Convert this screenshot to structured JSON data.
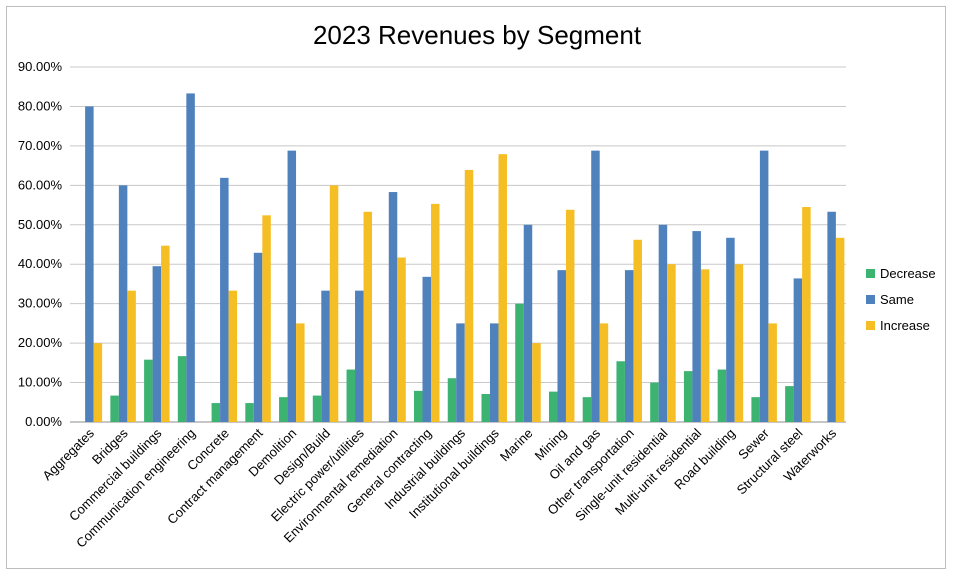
{
  "chart_data": {
    "type": "bar",
    "title": "2023 Revenues by Segment",
    "xlabel": "",
    "ylabel": "",
    "ylim": [
      0,
      90
    ],
    "yticks": [
      "0.00%",
      "10.00%",
      "20.00%",
      "30.00%",
      "40.00%",
      "50.00%",
      "60.00%",
      "70.00%",
      "80.00%",
      "90.00%"
    ],
    "grid": true,
    "legend_position": "right",
    "categories": [
      "Aggregates",
      "Bridges",
      "Commercial buildings",
      "Communication engineering",
      "Concrete",
      "Contract management",
      "Demolition",
      "Design/Build",
      "Electric power/utilities",
      "Environmental remediation",
      "General contracting",
      "Industrial buildings",
      "Institutional buildings",
      "Marine",
      "Mining",
      "Oil and gas",
      "Other transportation",
      "Single-unit residential",
      "Multi-unit residential",
      "Road building",
      "Sewer",
      "Structural steel",
      "Waterworks"
    ],
    "series": [
      {
        "name": "Decrease",
        "color": "#3cb371",
        "values": [
          0,
          6.7,
          15.8,
          16.7,
          4.8,
          4.8,
          6.3,
          6.7,
          13.3,
          0,
          7.9,
          11.1,
          7.1,
          30.0,
          7.7,
          6.3,
          15.4,
          10.0,
          12.9,
          13.3,
          6.3,
          9.1,
          0
        ]
      },
      {
        "name": "Same",
        "color": "#4f81bd",
        "values": [
          80.0,
          60.0,
          39.5,
          83.3,
          61.9,
          42.9,
          68.8,
          33.3,
          33.3,
          58.3,
          36.8,
          25.0,
          25.0,
          50.0,
          38.5,
          68.8,
          38.5,
          50.0,
          48.4,
          46.7,
          68.8,
          36.4,
          53.3
        ]
      },
      {
        "name": "Increase",
        "color": "#f6be25",
        "values": [
          20.0,
          33.3,
          44.7,
          0,
          33.3,
          52.4,
          25.0,
          60.0,
          53.3,
          41.7,
          55.3,
          63.9,
          67.9,
          20.0,
          53.8,
          25.0,
          46.2,
          40.0,
          38.7,
          40.0,
          25.0,
          54.5,
          46.7
        ]
      }
    ]
  }
}
